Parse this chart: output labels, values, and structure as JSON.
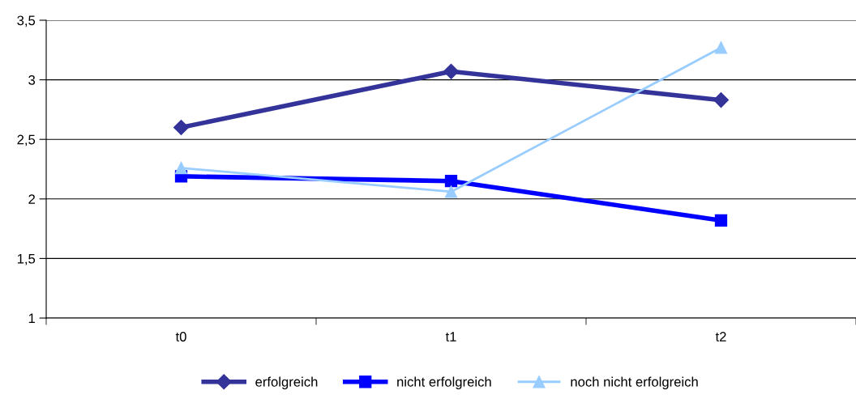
{
  "chart_data": {
    "type": "line",
    "categories": [
      "t0",
      "t1",
      "t2"
    ],
    "series": [
      {
        "name": "erfolgreich",
        "color": "#333399",
        "marker": "diamond",
        "values": [
          2.6,
          3.07,
          2.83
        ]
      },
      {
        "name": "nicht erfolgreich",
        "color": "#0000ff",
        "marker": "square",
        "values": [
          2.19,
          2.15,
          1.82
        ]
      },
      {
        "name": "noch nicht erfolgreich",
        "color": "#99ccff",
        "marker": "triangle",
        "values": [
          2.26,
          2.06,
          3.27
        ]
      }
    ],
    "ylim": [
      1,
      3.5
    ],
    "yticks": [
      1,
      {
        "value": 1.5,
        "label": "1,5"
      },
      2,
      {
        "value": 2.5,
        "label": "2,5"
      },
      3,
      {
        "value": 3.5,
        "label": "3,5"
      }
    ],
    "grid": "y",
    "legend": "bottom",
    "line_style": "solid"
  }
}
